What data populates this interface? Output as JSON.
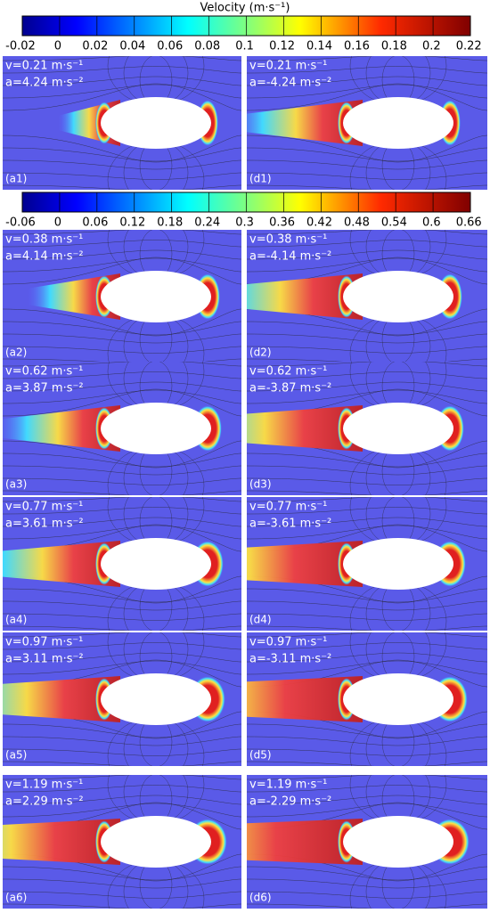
{
  "colorbars": [
    {
      "title": "Velocity (m·s⁻¹)",
      "ticks": [
        "-0.02",
        "0",
        "0.02",
        "0.04",
        "0.06",
        "0.08",
        "0.1",
        "0.12",
        "0.14",
        "0.16",
        "0.18",
        "0.2",
        "0.22"
      ]
    },
    {
      "ticks": [
        "-0.06",
        "0",
        "0.06",
        "0.12",
        "0.18",
        "0.24",
        "0.3",
        "0.36",
        "0.42",
        "0.48",
        "0.54",
        "0.6",
        "0.66"
      ]
    }
  ],
  "rows": [
    {
      "left": {
        "v": "v=0.21 m·s⁻¹",
        "a": "a=4.24 m·s⁻²",
        "label": "(a1)"
      },
      "right": {
        "v": "v=0.21 m·s⁻¹",
        "a": "a=-4.24 m·s⁻²",
        "label": "(d1)"
      }
    },
    {
      "left": {
        "v": "v=0.38 m·s⁻¹",
        "a": "a=4.14 m·s⁻²",
        "label": "(a2)"
      },
      "right": {
        "v": "v=0.38 m·s⁻¹",
        "a": "a=-4.14 m·s⁻²",
        "label": "(d2)"
      }
    },
    {
      "left": {
        "v": "v=0.62 m·s⁻¹",
        "a": "a=3.87 m·s⁻²",
        "label": "(a3)"
      },
      "right": {
        "v": "v=0.62 m·s⁻¹",
        "a": "a=-3.87 m·s⁻²",
        "label": "(d3)"
      }
    },
    {
      "left": {
        "v": "v=0.77 m·s⁻¹",
        "a": "a=3.61 m·s⁻²",
        "label": "(a4)"
      },
      "right": {
        "v": "v=0.77 m·s⁻¹",
        "a": "a=-3.61 m·s⁻²",
        "label": "(d4)"
      }
    },
    {
      "left": {
        "v": "v=0.97 m·s⁻¹",
        "a": "a=3.11 m·s⁻²",
        "label": "(a5)"
      },
      "right": {
        "v": "v=0.97 m·s⁻¹",
        "a": "a=-3.11 m·s⁻²",
        "label": "(d5)"
      }
    },
    {
      "left": {
        "v": "v=1.19 m·s⁻¹",
        "a": "a=2.29 m·s⁻²",
        "label": "(a6)"
      },
      "right": {
        "v": "v=1.19 m·s⁻¹",
        "a": "a=-2.29 m·s⁻²",
        "label": "(d6)"
      }
    }
  ]
}
